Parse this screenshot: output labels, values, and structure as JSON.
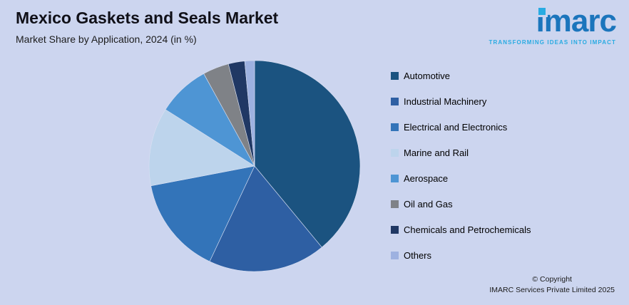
{
  "header": {
    "title": "Mexico Gaskets and Seals Market",
    "subtitle": "Market Share by Application, 2024 (in %)"
  },
  "logo": {
    "brand": "imarc",
    "tagline": "TRANSFORMING IDEAS INTO IMPACT",
    "brand_color": "#1b75bc",
    "accent_color": "#29abe2"
  },
  "footer": {
    "line1": "© Copyright",
    "line2": "IMARC Services Private Limited 2025"
  },
  "chart_data": {
    "type": "pie",
    "title": "Mexico Gaskets and Seals Market",
    "subtitle": "Market Share by Application, 2024 (in %)",
    "unit": "%",
    "legend_position": "right",
    "start_angle_deg": 0,
    "direction": "clockwise",
    "background_color": "#ccd5ef",
    "categories": [
      "Automotive",
      "Industrial Machinery",
      "Electrical and Electronics",
      "Marine and Rail",
      "Aerospace",
      "Oil and Gas",
      "Chemicals and Petrochemicals",
      "Others"
    ],
    "values": [
      39,
      18,
      15,
      12,
      8,
      4,
      2.5,
      1.5
    ],
    "colors": [
      "#1b5380",
      "#2e5fa3",
      "#3374b9",
      "#bdd4ec",
      "#4e95d4",
      "#7f8287",
      "#203864",
      "#9db1e0"
    ]
  }
}
